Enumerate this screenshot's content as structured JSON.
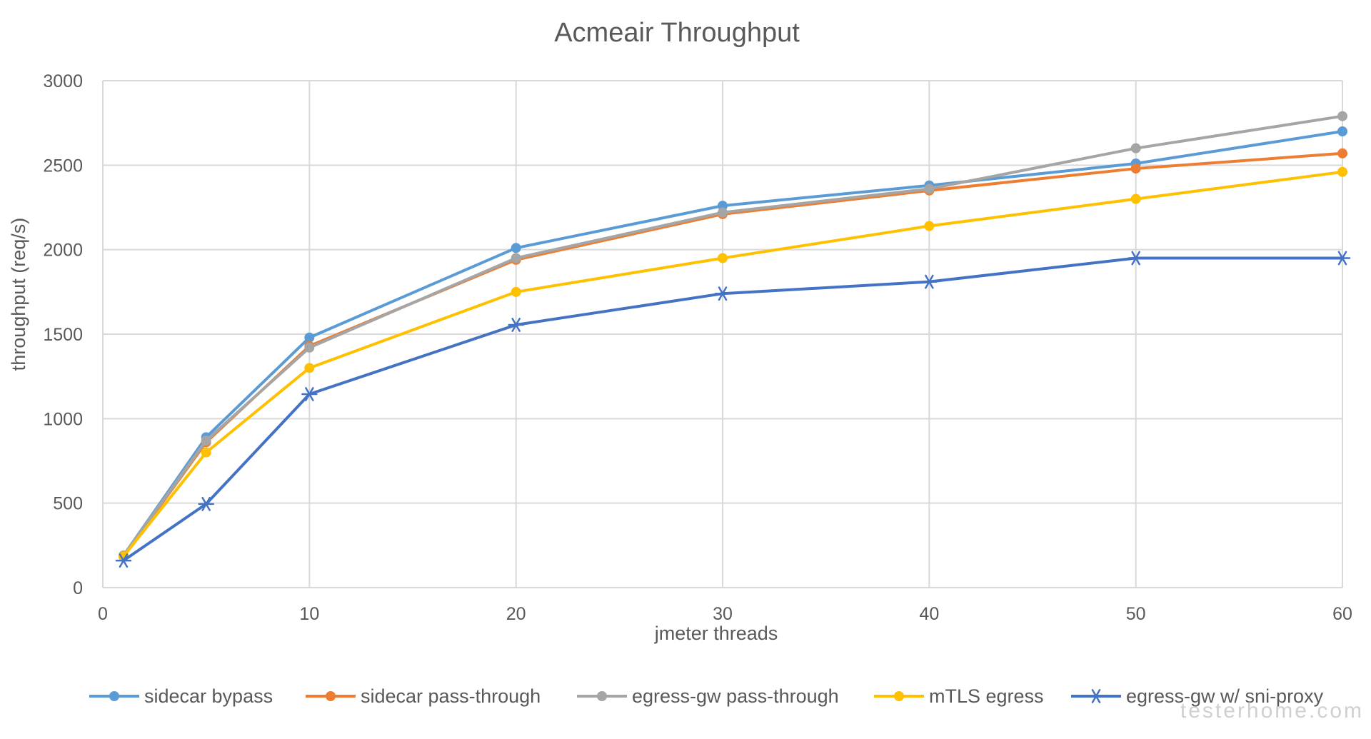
{
  "chart_data": {
    "type": "line",
    "title": "Acmeair Throughput",
    "xlabel": "jmeter threads",
    "ylabel": "throughput (req/s)",
    "xlim": [
      0,
      60
    ],
    "ylim": [
      0,
      3000
    ],
    "x_ticks": [
      0,
      10,
      20,
      30,
      40,
      50,
      60
    ],
    "y_ticks": [
      0,
      500,
      1000,
      1500,
      2000,
      2500,
      3000
    ],
    "grid": true,
    "legend_position": "bottom",
    "x": [
      1,
      5,
      10,
      20,
      30,
      40,
      50,
      60
    ],
    "series": [
      {
        "name": "sidecar bypass",
        "color": "#5b9bd5",
        "marker": "circle",
        "values": [
          190,
          890,
          1480,
          2010,
          2260,
          2380,
          2510,
          2700
        ]
      },
      {
        "name": "sidecar pass-through",
        "color": "#ed7d31",
        "marker": "circle",
        "values": [
          185,
          860,
          1430,
          1940,
          2210,
          2350,
          2480,
          2570
        ]
      },
      {
        "name": "egress-gw pass-through",
        "color": "#a5a5a5",
        "marker": "circle",
        "values": [
          190,
          870,
          1420,
          1950,
          2220,
          2360,
          2600,
          2790
        ]
      },
      {
        "name": "mTLS egress",
        "color": "#ffc000",
        "marker": "circle",
        "values": [
          185,
          800,
          1300,
          1750,
          1950,
          2140,
          2300,
          2460
        ]
      },
      {
        "name": "egress-gw w/ sni-proxy",
        "color": "#4472c4",
        "marker": "star",
        "values": [
          160,
          495,
          1145,
          1555,
          1740,
          1810,
          1950,
          1950
        ]
      }
    ]
  },
  "watermark": "testerhome.com"
}
